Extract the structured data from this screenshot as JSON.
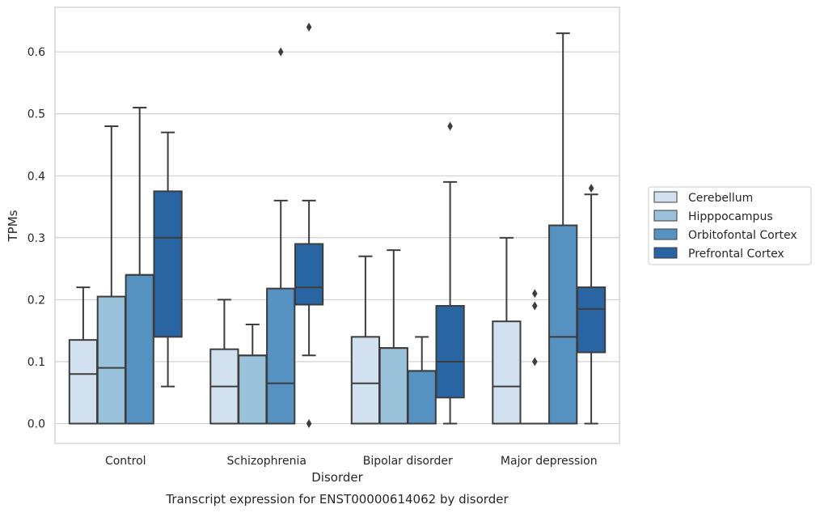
{
  "chart_data": {
    "type": "box",
    "xlabel": "Disorder",
    "ylabel": "TPMs",
    "caption": "Transcript expression for ENST00000614062 by disorder",
    "ylim": [
      -0.032,
      0.672
    ],
    "yticks": [
      "0.0",
      "0.1",
      "0.2",
      "0.3",
      "0.4",
      "0.5",
      "0.6"
    ],
    "grid": "horizontal",
    "legend_position": "right",
    "categories": [
      "Control",
      "Schizophrenia",
      "Bipolar disorder",
      "Major depression"
    ],
    "series": [
      {
        "name": "Cerebellum",
        "color": "#d1e1ef",
        "boxes": [
          {
            "whislo": 0.0,
            "q1": 0.0,
            "med": 0.08,
            "q3": 0.135,
            "whishi": 0.22,
            "fliers": []
          },
          {
            "whislo": 0.0,
            "q1": 0.0,
            "med": 0.06,
            "q3": 0.12,
            "whishi": 0.2,
            "fliers": []
          },
          {
            "whislo": 0.0,
            "q1": 0.0,
            "med": 0.065,
            "q3": 0.14,
            "whishi": 0.27,
            "fliers": []
          },
          {
            "whislo": 0.0,
            "q1": 0.0,
            "med": 0.06,
            "q3": 0.165,
            "whishi": 0.3,
            "fliers": []
          }
        ]
      },
      {
        "name": "Hipppocampus",
        "color": "#9ac3db",
        "boxes": [
          {
            "whislo": 0.0,
            "q1": 0.0,
            "med": 0.09,
            "q3": 0.205,
            "whishi": 0.48,
            "fliers": []
          },
          {
            "whislo": 0.0,
            "q1": 0.0,
            "med": 0.11,
            "q3": 0.11,
            "whishi": 0.16,
            "fliers": []
          },
          {
            "whislo": 0.0,
            "q1": 0.0,
            "med": 0.122,
            "q3": 0.122,
            "whishi": 0.28,
            "fliers": []
          },
          {
            "whislo": 0.0,
            "q1": 0.0,
            "med": 0.0,
            "q3": 0.0,
            "whishi": 0.0,
            "fliers": [
              0.1,
              0.19,
              0.21
            ]
          }
        ]
      },
      {
        "name": "Orbitofontal Cortex",
        "color": "#5592c2",
        "boxes": [
          {
            "whislo": 0.0,
            "q1": 0.0,
            "med": 0.24,
            "q3": 0.24,
            "whishi": 0.51,
            "fliers": []
          },
          {
            "whislo": 0.0,
            "q1": 0.0,
            "med": 0.065,
            "q3": 0.218,
            "whishi": 0.36,
            "fliers": [
              0.6
            ]
          },
          {
            "whislo": 0.0,
            "q1": 0.0,
            "med": 0.085,
            "q3": 0.085,
            "whishi": 0.14,
            "fliers": []
          },
          {
            "whislo": 0.0,
            "q1": 0.0,
            "med": 0.14,
            "q3": 0.32,
            "whishi": 0.63,
            "fliers": []
          }
        ]
      },
      {
        "name": "Prefrontal Cortex",
        "color": "#2a65a3",
        "boxes": [
          {
            "whislo": 0.06,
            "q1": 0.14,
            "med": 0.3,
            "q3": 0.375,
            "whishi": 0.47,
            "fliers": []
          },
          {
            "whislo": 0.11,
            "q1": 0.192,
            "med": 0.22,
            "q3": 0.29,
            "whishi": 0.36,
            "fliers": [
              0.64,
              0.0
            ]
          },
          {
            "whislo": 0.0,
            "q1": 0.042,
            "med": 0.1,
            "q3": 0.19,
            "whishi": 0.39,
            "fliers": [
              0.48
            ]
          },
          {
            "whislo": 0.0,
            "q1": 0.115,
            "med": 0.185,
            "q3": 0.22,
            "whishi": 0.37,
            "fliers": [
              0.38
            ]
          }
        ]
      }
    ]
  }
}
